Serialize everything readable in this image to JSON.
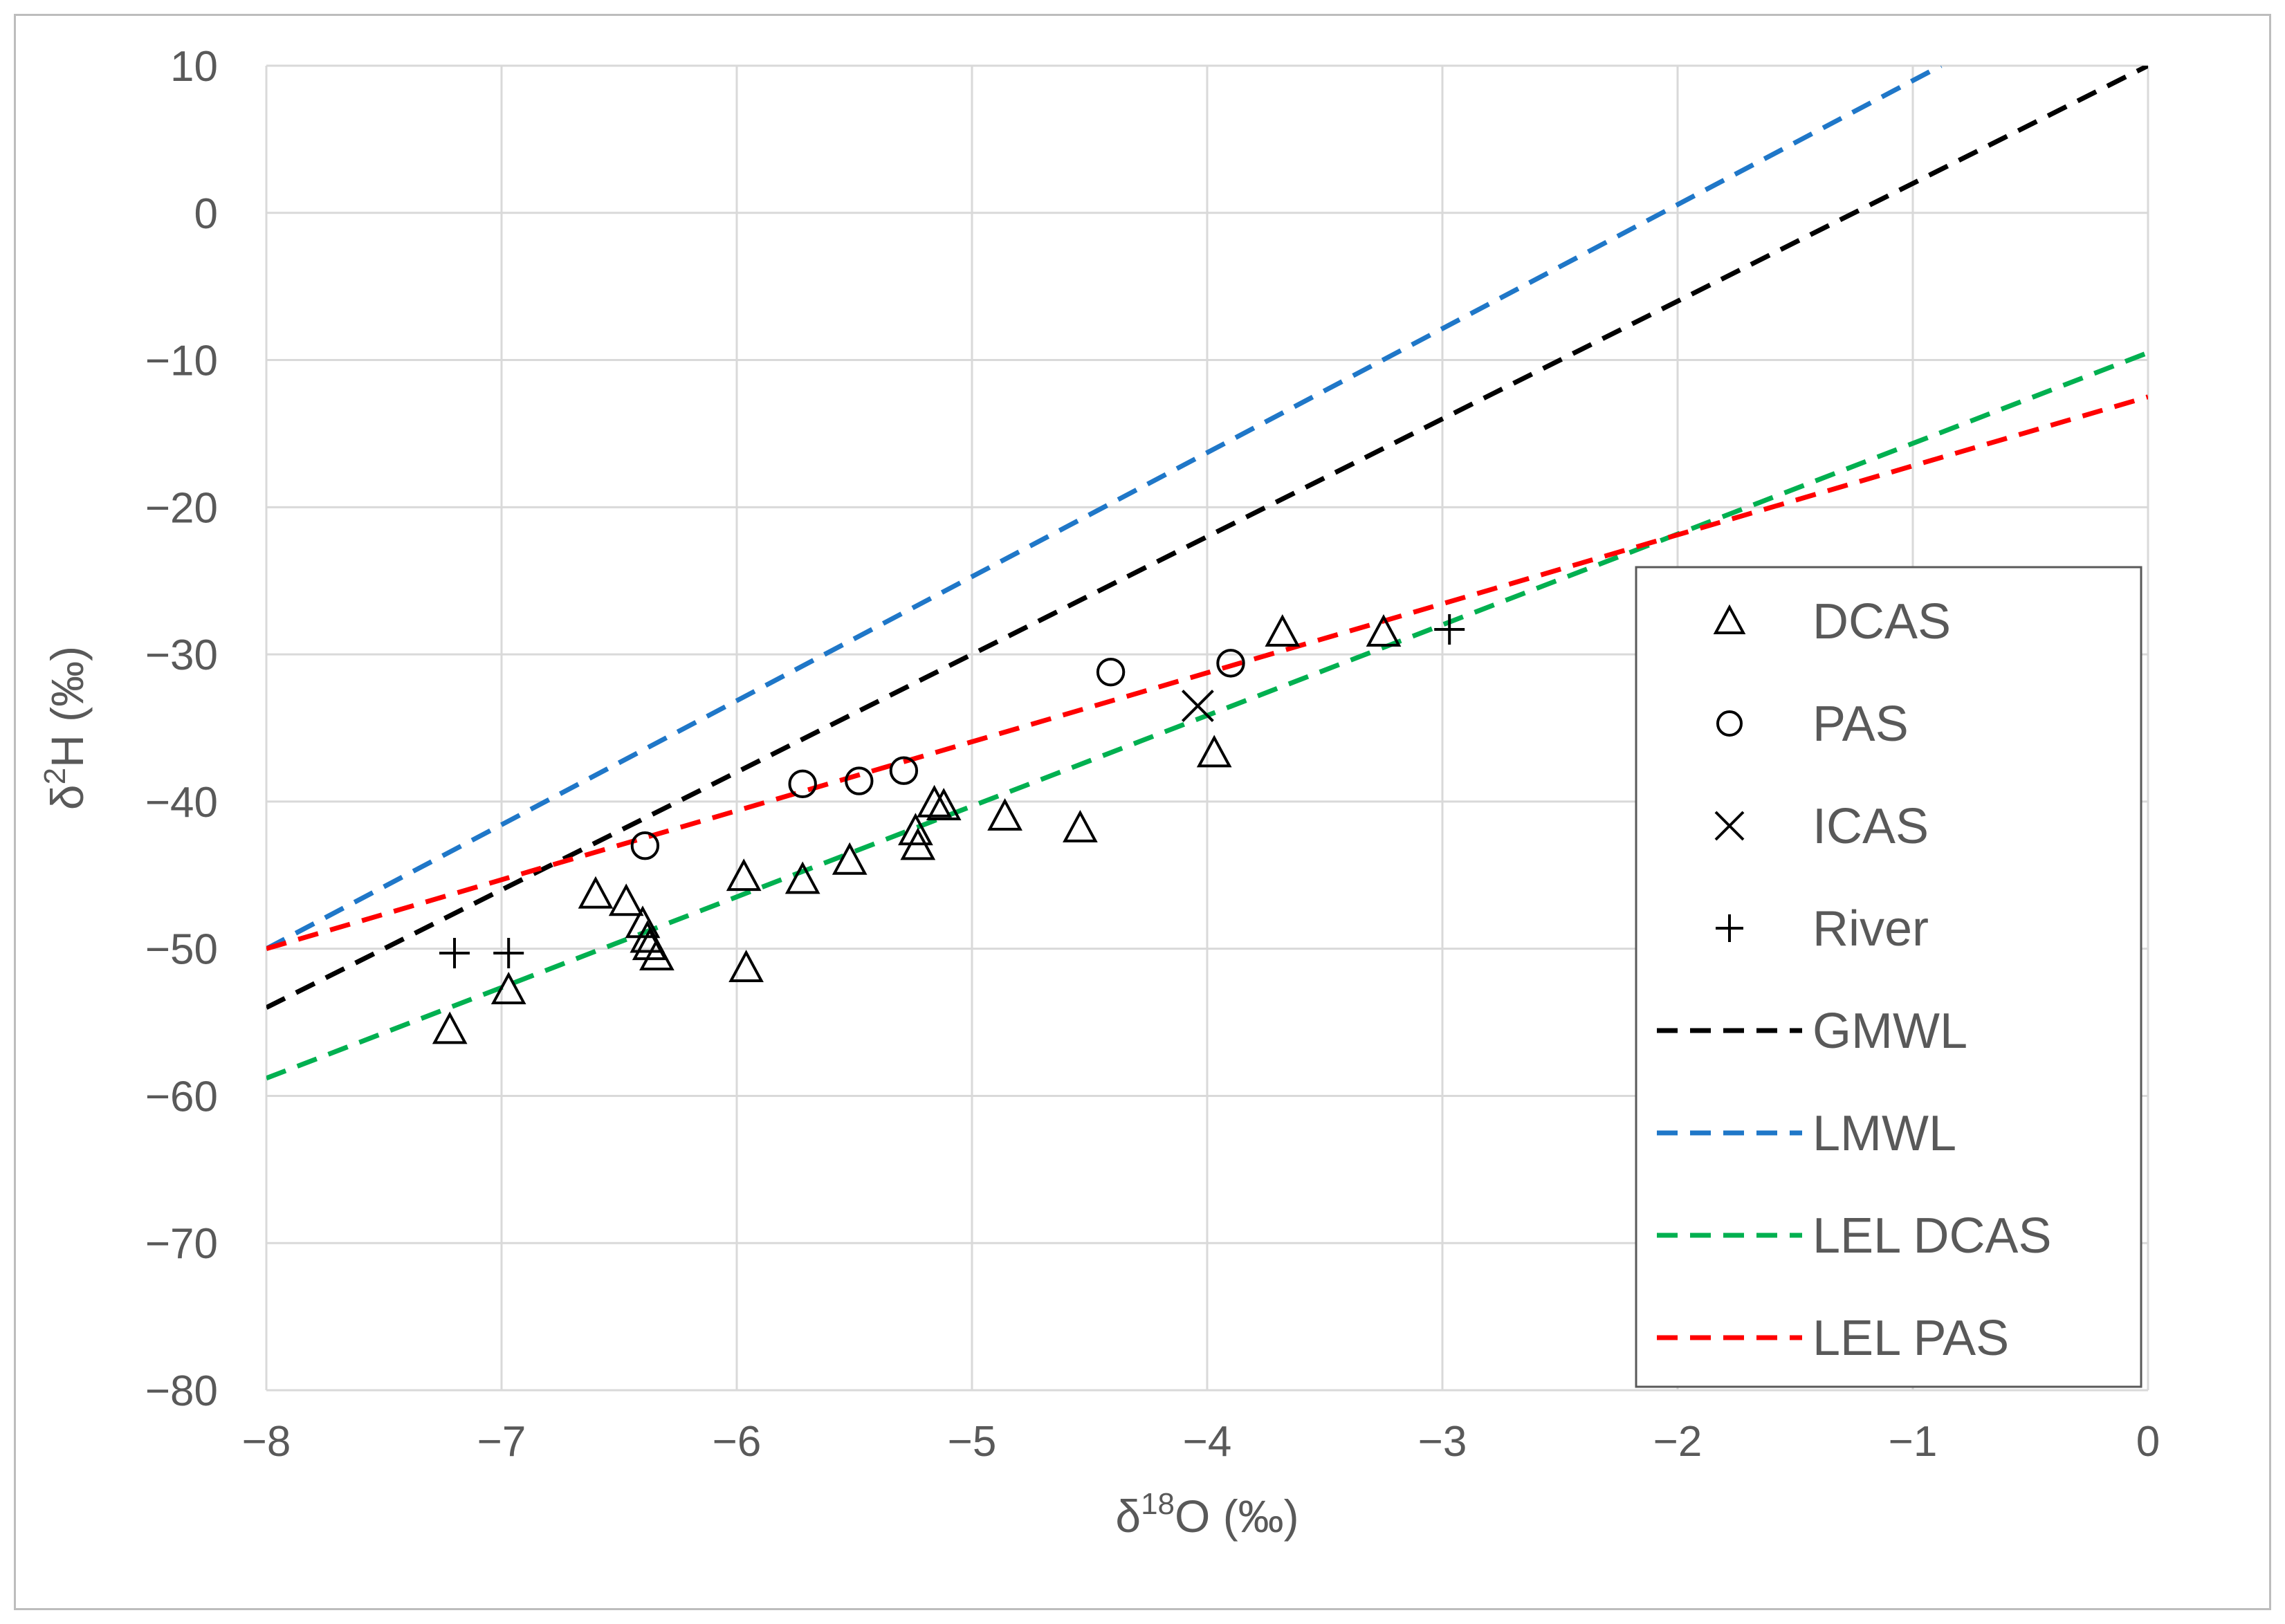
{
  "chart_data": {
    "type": "scatter",
    "title": "",
    "xlabel": "δ18O (‰)",
    "ylabel": "δ2H (‰)",
    "xlim": [
      -8,
      0
    ],
    "ylim": [
      -80,
      10
    ],
    "x_ticks": [
      -8,
      -7,
      -6,
      -5,
      -4,
      -3,
      -2,
      -1,
      0
    ],
    "y_ticks": [
      -80,
      -70,
      -60,
      -50,
      -40,
      -30,
      -20,
      -10,
      0,
      10
    ],
    "x_tick_labels": [
      "−8",
      "−7",
      "−6",
      "−5",
      "−4",
      "−3",
      "−2",
      "−1",
      "0"
    ],
    "y_tick_labels": [
      "−80",
      "−70",
      "−60",
      "−50",
      "−40",
      "−30",
      "−20",
      "−10",
      "0",
      "10"
    ],
    "grid": true,
    "legend_position": "right",
    "series": [
      {
        "name": "DCAS",
        "kind": "points",
        "marker": "triangle",
        "color": "#000000",
        "points": [
          [
            -7.22,
            -55.5
          ],
          [
            -6.97,
            -52.8
          ],
          [
            -6.6,
            -46.3
          ],
          [
            -6.47,
            -46.8
          ],
          [
            -6.4,
            -48.3
          ],
          [
            -6.38,
            -49.3
          ],
          [
            -6.37,
            -49.8
          ],
          [
            -6.34,
            -50.5
          ],
          [
            -5.97,
            -45.1
          ],
          [
            -5.96,
            -51.3
          ],
          [
            -5.72,
            -45.3
          ],
          [
            -5.52,
            -44.0
          ],
          [
            -5.24,
            -42.0
          ],
          [
            -5.23,
            -43.0
          ],
          [
            -5.16,
            -40.1
          ],
          [
            -5.12,
            -40.3
          ],
          [
            -4.86,
            -41.0
          ],
          [
            -4.54,
            -41.8
          ],
          [
            -3.97,
            -36.7
          ],
          [
            -3.68,
            -28.5
          ],
          [
            -3.25,
            -28.5
          ]
        ]
      },
      {
        "name": "PAS",
        "kind": "points",
        "marker": "circle",
        "color": "#000000",
        "points": [
          [
            -6.39,
            -43.0
          ],
          [
            -5.72,
            -38.8
          ],
          [
            -5.48,
            -38.6
          ],
          [
            -5.29,
            -37.9
          ],
          [
            -4.41,
            -31.2
          ],
          [
            -3.9,
            -30.6
          ]
        ]
      },
      {
        "name": "ICAS",
        "kind": "points",
        "marker": "x",
        "color": "#000000",
        "points": [
          [
            -4.04,
            -33.5
          ]
        ]
      },
      {
        "name": "River",
        "kind": "points",
        "marker": "plus",
        "color": "#000000",
        "points": [
          [
            -7.2,
            -50.3
          ],
          [
            -6.97,
            -50.3
          ],
          [
            -2.97,
            -28.3
          ]
        ]
      },
      {
        "name": "GMWL",
        "kind": "line",
        "color": "#000000",
        "dash": true,
        "points": [
          [
            -8,
            -54.0
          ],
          [
            0,
            10.0
          ]
        ]
      },
      {
        "name": "LMWL",
        "kind": "line",
        "color": "#1f77c8",
        "dash": true,
        "points": [
          [
            -8,
            -50.0
          ],
          [
            -0.88,
            10.0
          ]
        ]
      },
      {
        "name": "LEL DCAS",
        "kind": "line",
        "color": "#00b050",
        "dash": true,
        "points": [
          [
            -8,
            -58.8
          ],
          [
            0,
            -9.5
          ]
        ]
      },
      {
        "name": "LEL PAS",
        "kind": "line",
        "color": "#ff0000",
        "dash": true,
        "points": [
          [
            -8,
            -50.0
          ],
          [
            0,
            -12.5
          ]
        ]
      }
    ]
  }
}
